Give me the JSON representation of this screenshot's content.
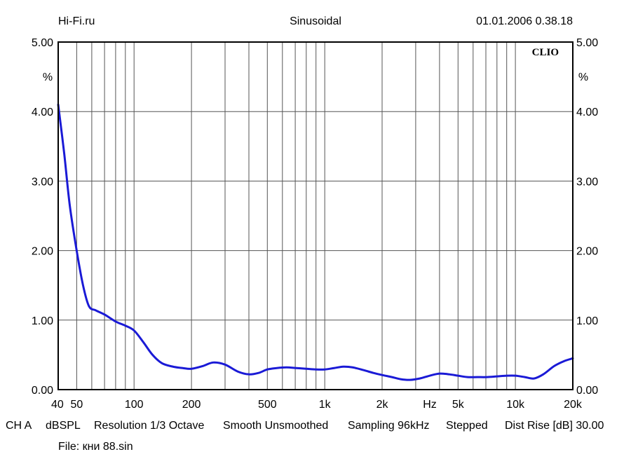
{
  "header": {
    "site": "Hi-Fi.ru",
    "title": "Sinusoidal",
    "datetime": "01.01.2006 0.38.18"
  },
  "brand": "CLIO",
  "footer": {
    "channel": "CH A",
    "unit": "dBSPL",
    "resolution": "Resolution 1/3 Octave",
    "smooth": "Smooth Unsmoothed",
    "sampling": "Sampling 96kHz",
    "mode": "Stepped",
    "dist_rise": "Dist Rise [dB] 30.00",
    "file": "File: кни 88.sin"
  },
  "colors": {
    "curve": "#1a1ad6",
    "grid": "#555555",
    "frame": "#000000"
  },
  "chart_data": {
    "type": "line",
    "xscale": "log",
    "xlim": [
      40,
      20000
    ],
    "ylim": [
      0,
      5
    ],
    "grid": true,
    "xlabel": "Hz",
    "ylabel": "%",
    "y_ticks": [
      "0.00",
      "1.00",
      "2.00",
      "3.00",
      "4.00",
      "5.00"
    ],
    "x_tick_labels": [
      {
        "value": 40,
        "label": "40"
      },
      {
        "value": 50,
        "label": "50"
      },
      {
        "value": 100,
        "label": "100"
      },
      {
        "value": 200,
        "label": "200"
      },
      {
        "value": 500,
        "label": "500"
      },
      {
        "value": 1000,
        "label": "1k"
      },
      {
        "value": 2000,
        "label": "2k"
      },
      {
        "value": 5000,
        "label": "5k"
      },
      {
        "value": 10000,
        "label": "10k"
      },
      {
        "value": 20000,
        "label": "20k"
      }
    ],
    "x_grid": [
      50,
      60,
      70,
      80,
      90,
      100,
      200,
      300,
      400,
      500,
      600,
      700,
      800,
      900,
      1000,
      2000,
      3000,
      4000,
      5000,
      6000,
      7000,
      8000,
      9000,
      10000
    ],
    "series": [
      {
        "x": [
          40,
          43,
          46,
          50,
          54,
          58,
          63,
          70,
          80,
          90,
          100,
          112,
          125,
          140,
          160,
          180,
          200,
          230,
          260,
          300,
          350,
          400,
          450,
          500,
          560,
          630,
          710,
          800,
          900,
          1000,
          1120,
          1250,
          1400,
          1600,
          1800,
          2000,
          2250,
          2500,
          2800,
          3150,
          3550,
          4000,
          4500,
          5000,
          5600,
          6300,
          7100,
          8000,
          9000,
          10000,
          11200,
          12500,
          14000,
          16000,
          18000,
          20000
        ],
        "values": [
          4.1,
          3.4,
          2.65,
          2.0,
          1.5,
          1.2,
          1.14,
          1.08,
          0.98,
          0.92,
          0.85,
          0.68,
          0.5,
          0.38,
          0.33,
          0.31,
          0.3,
          0.34,
          0.39,
          0.36,
          0.26,
          0.22,
          0.24,
          0.29,
          0.31,
          0.32,
          0.31,
          0.3,
          0.29,
          0.29,
          0.31,
          0.33,
          0.32,
          0.28,
          0.24,
          0.21,
          0.18,
          0.15,
          0.14,
          0.16,
          0.2,
          0.23,
          0.22,
          0.2,
          0.18,
          0.18,
          0.18,
          0.19,
          0.2,
          0.2,
          0.18,
          0.16,
          0.22,
          0.34,
          0.41,
          0.45
        ]
      }
    ]
  }
}
